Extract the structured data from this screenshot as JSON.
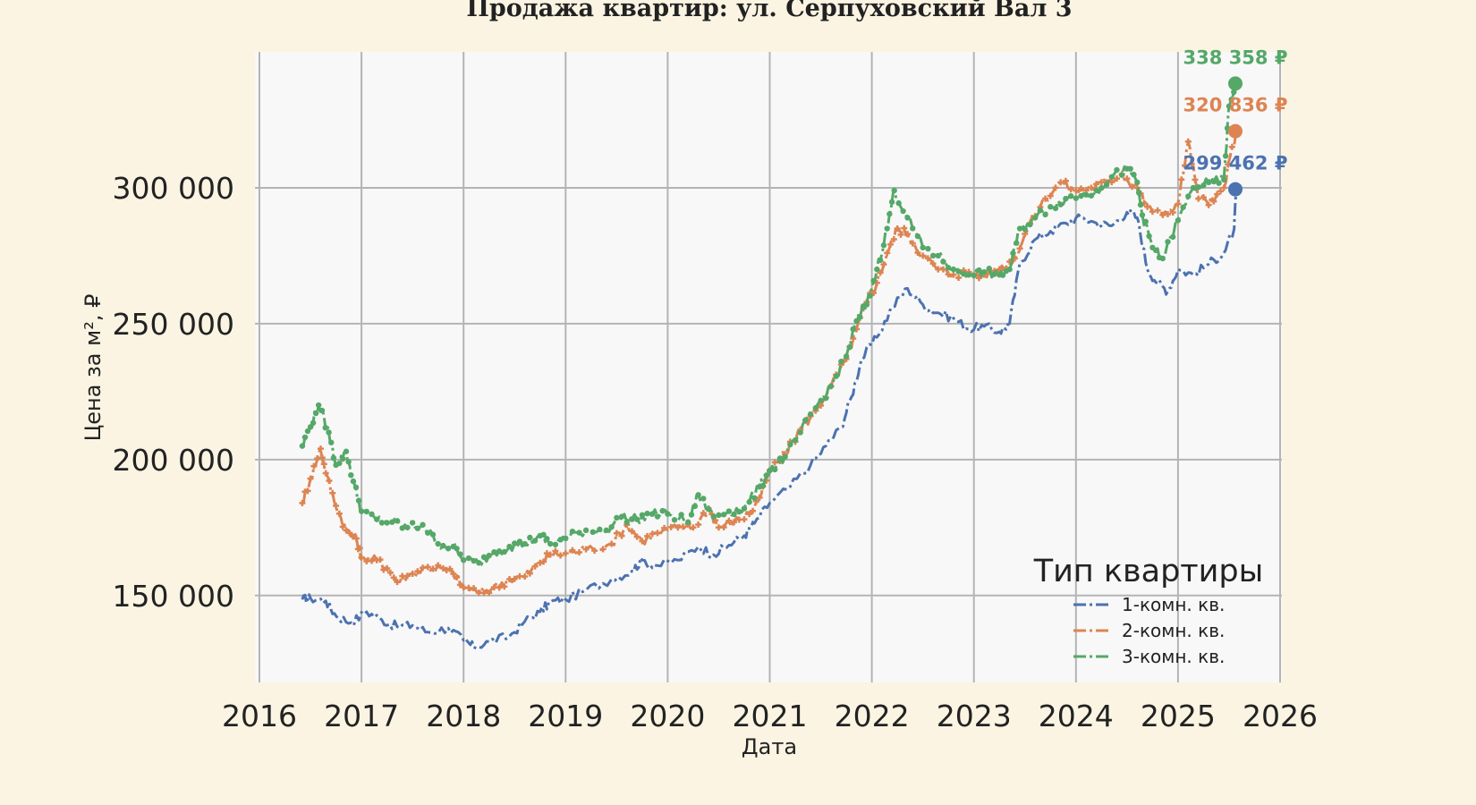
{
  "chart_data": {
    "type": "line",
    "title": "Продажа квартир: ул. Серпуховский Вал 3",
    "xlabel": "Дата",
    "ylabel": "Цена за м², ₽",
    "xlim": [
      2016,
      2026
    ],
    "ylim": [
      118000,
      350000
    ],
    "x_ticks": [
      2016,
      2017,
      2018,
      2019,
      2020,
      2021,
      2022,
      2023,
      2024,
      2025,
      2026
    ],
    "x_tick_labels": [
      "2016",
      "2017",
      "2018",
      "2019",
      "2020",
      "2021",
      "2022",
      "2023",
      "2024",
      "2025",
      "2026"
    ],
    "y_ticks": [
      150000,
      200000,
      250000,
      300000
    ],
    "y_tick_labels": [
      "150 000",
      "200 000",
      "250 000",
      "300 000"
    ],
    "grid": true,
    "legend": {
      "title": "Тип квартиры",
      "placement": "bottom-right"
    },
    "series": [
      {
        "name": "1-комн. кв.",
        "color": "#4c72b0",
        "marker": "none",
        "end_value": 299462,
        "end_label": "299 462 ₽",
        "points": [
          [
            2016.42,
            148500
          ],
          [
            2016.5,
            149000
          ],
          [
            2016.65,
            148000
          ],
          [
            2016.75,
            142500
          ],
          [
            2016.9,
            140000
          ],
          [
            2017.05,
            144000
          ],
          [
            2017.2,
            141000
          ],
          [
            2017.35,
            138500
          ],
          [
            2017.5,
            139000
          ],
          [
            2017.65,
            136500
          ],
          [
            2017.85,
            138000
          ],
          [
            2018.0,
            133500
          ],
          [
            2018.1,
            131000
          ],
          [
            2018.25,
            133000
          ],
          [
            2018.45,
            135000
          ],
          [
            2018.6,
            140500
          ],
          [
            2018.75,
            144000
          ],
          [
            2018.85,
            147500
          ],
          [
            2019.0,
            148500
          ],
          [
            2019.2,
            152000
          ],
          [
            2019.45,
            156000
          ],
          [
            2019.65,
            159000
          ],
          [
            2019.75,
            163000
          ],
          [
            2019.9,
            161000
          ],
          [
            2020.1,
            163000
          ],
          [
            2020.3,
            168000
          ],
          [
            2020.45,
            165000
          ],
          [
            2020.6,
            168500
          ],
          [
            2020.75,
            172000
          ],
          [
            2020.85,
            176500
          ],
          [
            2021.0,
            184000
          ],
          [
            2021.2,
            190000
          ],
          [
            2021.4,
            198000
          ],
          [
            2021.55,
            205000
          ],
          [
            2021.7,
            212000
          ],
          [
            2021.8,
            223000
          ],
          [
            2021.9,
            237000
          ],
          [
            2022.05,
            245000
          ],
          [
            2022.2,
            256000
          ],
          [
            2022.35,
            263000
          ],
          [
            2022.5,
            257000
          ],
          [
            2022.65,
            254000
          ],
          [
            2022.8,
            252000
          ],
          [
            2022.95,
            248000
          ],
          [
            2023.1,
            249000
          ],
          [
            2023.25,
            247000
          ],
          [
            2023.35,
            250000
          ],
          [
            2023.45,
            272000
          ],
          [
            2023.6,
            281000
          ],
          [
            2023.75,
            284000
          ],
          [
            2023.9,
            287000
          ],
          [
            2024.05,
            289000
          ],
          [
            2024.2,
            287000
          ],
          [
            2024.35,
            286000
          ],
          [
            2024.5,
            291000
          ],
          [
            2024.6,
            289000
          ],
          [
            2024.7,
            270000
          ],
          [
            2024.8,
            265000
          ],
          [
            2024.9,
            262000
          ],
          [
            2025.0,
            270000
          ],
          [
            2025.15,
            268000
          ],
          [
            2025.3,
            272000
          ],
          [
            2025.45,
            276000
          ],
          [
            2025.55,
            285000
          ],
          [
            2025.57,
            299462
          ]
        ]
      },
      {
        "name": "2-комн. кв.",
        "color": "#dd8452",
        "marker": "plus",
        "end_value": 320836,
        "end_label": "320 836 ₽",
        "points": [
          [
            2016.42,
            184000
          ],
          [
            2016.5,
            193000
          ],
          [
            2016.6,
            204000
          ],
          [
            2016.65,
            195000
          ],
          [
            2016.75,
            183000
          ],
          [
            2016.85,
            174000
          ],
          [
            2016.95,
            171000
          ],
          [
            2017.0,
            164000
          ],
          [
            2017.15,
            163000
          ],
          [
            2017.25,
            160000
          ],
          [
            2017.35,
            155000
          ],
          [
            2017.5,
            158000
          ],
          [
            2017.65,
            160500
          ],
          [
            2017.8,
            160000
          ],
          [
            2017.9,
            158000
          ],
          [
            2018.0,
            153000
          ],
          [
            2018.15,
            151000
          ],
          [
            2018.3,
            153000
          ],
          [
            2018.45,
            156000
          ],
          [
            2018.6,
            157000
          ],
          [
            2018.75,
            162000
          ],
          [
            2018.85,
            165000
          ],
          [
            2019.0,
            165500
          ],
          [
            2019.2,
            167000
          ],
          [
            2019.45,
            169000
          ],
          [
            2019.6,
            176000
          ],
          [
            2019.75,
            170000
          ],
          [
            2019.9,
            173000
          ],
          [
            2020.1,
            175000
          ],
          [
            2020.25,
            175000
          ],
          [
            2020.4,
            182000
          ],
          [
            2020.5,
            175000
          ],
          [
            2020.65,
            177000
          ],
          [
            2020.8,
            180000
          ],
          [
            2020.9,
            186000
          ],
          [
            2021.0,
            196000
          ],
          [
            2021.15,
            202000
          ],
          [
            2021.3,
            211000
          ],
          [
            2021.45,
            218000
          ],
          [
            2021.6,
            227000
          ],
          [
            2021.75,
            237000
          ],
          [
            2021.85,
            248000
          ],
          [
            2021.95,
            258000
          ],
          [
            2022.05,
            265000
          ],
          [
            2022.15,
            276000
          ],
          [
            2022.25,
            285000
          ],
          [
            2022.35,
            283000
          ],
          [
            2022.5,
            275000
          ],
          [
            2022.65,
            270000
          ],
          [
            2022.8,
            268000
          ],
          [
            2022.95,
            269000
          ],
          [
            2023.1,
            268000
          ],
          [
            2023.25,
            270000
          ],
          [
            2023.4,
            274000
          ],
          [
            2023.55,
            287000
          ],
          [
            2023.7,
            296000
          ],
          [
            2023.85,
            302000
          ],
          [
            2024.0,
            299000
          ],
          [
            2024.15,
            300000
          ],
          [
            2024.3,
            302000
          ],
          [
            2024.45,
            305000
          ],
          [
            2024.6,
            300000
          ],
          [
            2024.7,
            293000
          ],
          [
            2024.85,
            290000
          ],
          [
            2025.0,
            294000
          ],
          [
            2025.1,
            317000
          ],
          [
            2025.2,
            296000
          ],
          [
            2025.35,
            295000
          ],
          [
            2025.45,
            300000
          ],
          [
            2025.57,
            320836
          ]
        ]
      },
      {
        "name": "3-комн. кв.",
        "color": "#55a868",
        "marker": "dot",
        "end_value": 338358,
        "end_label": "338 358 ₽",
        "points": [
          [
            2016.42,
            205000
          ],
          [
            2016.5,
            212000
          ],
          [
            2016.58,
            220000
          ],
          [
            2016.68,
            210000
          ],
          [
            2016.75,
            198000
          ],
          [
            2016.85,
            203000
          ],
          [
            2016.92,
            192000
          ],
          [
            2017.0,
            181000
          ],
          [
            2017.15,
            178000
          ],
          [
            2017.3,
            177000
          ],
          [
            2017.45,
            175000
          ],
          [
            2017.6,
            176000
          ],
          [
            2017.75,
            169000
          ],
          [
            2017.9,
            168000
          ],
          [
            2018.0,
            163000
          ],
          [
            2018.15,
            162000
          ],
          [
            2018.3,
            166000
          ],
          [
            2018.45,
            168000
          ],
          [
            2018.6,
            169000
          ],
          [
            2018.75,
            172000
          ],
          [
            2018.85,
            169000
          ],
          [
            2019.0,
            171000
          ],
          [
            2019.2,
            174000
          ],
          [
            2019.4,
            174000
          ],
          [
            2019.55,
            179000
          ],
          [
            2019.7,
            178000
          ],
          [
            2019.85,
            180000
          ],
          [
            2020.0,
            180000
          ],
          [
            2020.2,
            177000
          ],
          [
            2020.3,
            187000
          ],
          [
            2020.45,
            179000
          ],
          [
            2020.6,
            181000
          ],
          [
            2020.75,
            182000
          ],
          [
            2020.9,
            190000
          ],
          [
            2021.0,
            196000
          ],
          [
            2021.15,
            201000
          ],
          [
            2021.3,
            210000
          ],
          [
            2021.45,
            219000
          ],
          [
            2021.6,
            227000
          ],
          [
            2021.75,
            238000
          ],
          [
            2021.85,
            251000
          ],
          [
            2021.95,
            257000
          ],
          [
            2022.05,
            270000
          ],
          [
            2022.15,
            285000
          ],
          [
            2022.22,
            299000
          ],
          [
            2022.35,
            289000
          ],
          [
            2022.5,
            278000
          ],
          [
            2022.65,
            275000
          ],
          [
            2022.8,
            270000
          ],
          [
            2022.95,
            268000
          ],
          [
            2023.1,
            269000
          ],
          [
            2023.25,
            268000
          ],
          [
            2023.35,
            270000
          ],
          [
            2023.45,
            285000
          ],
          [
            2023.6,
            289000
          ],
          [
            2023.75,
            293000
          ],
          [
            2023.9,
            296000
          ],
          [
            2024.05,
            297000
          ],
          [
            2024.2,
            299000
          ],
          [
            2024.35,
            304000
          ],
          [
            2024.5,
            307000
          ],
          [
            2024.6,
            302000
          ],
          [
            2024.65,
            290000
          ],
          [
            2024.75,
            278000
          ],
          [
            2024.85,
            274000
          ],
          [
            2025.0,
            288000
          ],
          [
            2025.15,
            300000
          ],
          [
            2025.3,
            302000
          ],
          [
            2025.45,
            303000
          ],
          [
            2025.5,
            330000
          ],
          [
            2025.57,
            338358
          ]
        ]
      }
    ]
  }
}
